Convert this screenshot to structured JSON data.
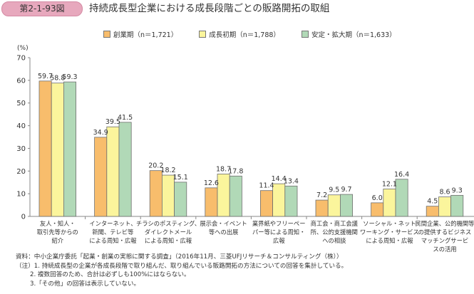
{
  "header": {
    "figure_number": "第2-1-93図",
    "title": "持続成長型企業における成長段階ごとの販路開拓の取組"
  },
  "chart_data": {
    "type": "bar",
    "title": "持続成長型企業における成長段階ごとの販路開拓の取組",
    "ylabel": "(%)",
    "xlabel": "",
    "ylim": [
      0,
      70
    ],
    "yticks": [
      0,
      10,
      20,
      30,
      40,
      50,
      60,
      70
    ],
    "grid": false,
    "legend_position": "top",
    "categories": [
      [
        "友人・知人・",
        "取引先等からの",
        "紹介"
      ],
      [
        "インターネット、",
        "新聞、テレビ等",
        "による周知・広報"
      ],
      [
        "チラシのポスティング、",
        "ダイレクトメール",
        "による周知・広報"
      ],
      [
        "展示会・イベント",
        "等への出展"
      ],
      [
        "業界紙やフリーペー",
        "パー等による周知・",
        "広報"
      ],
      [
        "商工会・商工会議",
        "所、公的支援機関",
        "への相談"
      ],
      [
        "ソーシャル・ネット",
        "ワーキング・サービス",
        "による周知・広報"
      ],
      [
        "民間企業、公的機関等",
        "の提供するビジネス",
        "マッチングサービ",
        "スの活用"
      ]
    ],
    "series": [
      {
        "name": "創業期（n＝1,721）",
        "color": "#f8bd6c",
        "values": [
          59.7,
          34.9,
          20.2,
          12.6,
          11.4,
          7.2,
          6.0,
          4.5
        ],
        "labels": [
          "59.7",
          "34.9",
          "20.2",
          "12.6",
          "11.4",
          "7.2",
          "6.0",
          "4.5"
        ]
      },
      {
        "name": "成長初期（n＝1,788）",
        "color": "#fbf59c",
        "values": [
          58.8,
          39.5,
          18.2,
          18.7,
          14.4,
          9.5,
          12.1,
          8.6
        ],
        "labels": [
          "58.8",
          "39.5",
          "18.2",
          "18.7",
          "14.4",
          "9.5",
          "12.1",
          "8.6"
        ]
      },
      {
        "name": "安定・拡大期（n＝1,633）",
        "color": "#b1d9b7",
        "values": [
          59.3,
          41.5,
          15.1,
          17.8,
          13.4,
          9.7,
          16.4,
          9.3
        ],
        "labels": [
          "59.3",
          "41.5",
          "15.1",
          "17.8",
          "13.4",
          "9.7",
          "16.4",
          "9.3"
        ]
      }
    ]
  },
  "notes": {
    "source": "資料：中小企業庁委託「起業・創業の実態に関する調査」（2016年11月、三菱UFJリサーチ＆コンサルティング（株））",
    "note1": "（注）1. 持続成長型の企業が各成長段階で取り組んだ、取り組んでいる販路開拓の方法についての回答を集計している。",
    "note2": "2. 複数回答のため、合計は必ずしも100%にはならない。",
    "note3": "3.「その他」の回答は表示していない。"
  }
}
